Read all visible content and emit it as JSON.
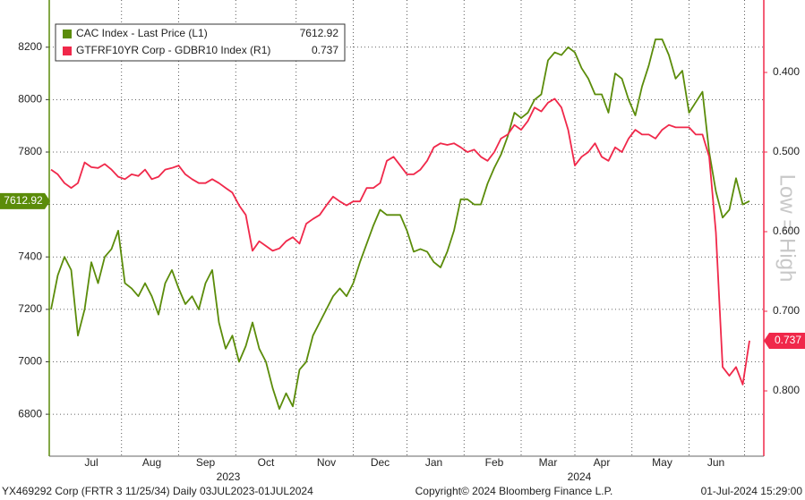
{
  "chart_data": {
    "type": "line",
    "categories": [
      null,
      null,
      null,
      null,
      null,
      null,
      "Jul",
      null,
      null,
      null,
      null,
      null,
      null,
      null,
      null,
      "Aug",
      null,
      null,
      null,
      null,
      null,
      null,
      null,
      "Sep",
      null,
      null,
      null,
      null,
      null,
      null,
      null,
      null,
      "Oct",
      null,
      null,
      null,
      null,
      null,
      null,
      null,
      null,
      "Nov",
      null,
      null,
      null,
      null,
      null,
      null,
      null,
      "Dec",
      null,
      null,
      null,
      null,
      null,
      null,
      null,
      "Jan",
      null,
      null,
      null,
      null,
      null,
      null,
      null,
      null,
      "Feb",
      null,
      null,
      null,
      null,
      null,
      null,
      null,
      "Mar",
      null,
      null,
      null,
      null,
      null,
      null,
      null,
      "Apr",
      null,
      null,
      null,
      null,
      null,
      null,
      null,
      null,
      "May",
      null,
      null,
      null,
      null,
      null,
      null,
      null,
      "Jun",
      null,
      null,
      null,
      null,
      null
    ],
    "years": [
      "2023",
      "2024"
    ],
    "series": [
      {
        "name": "CAC Index - Last Price (L1)",
        "color": "#5b8c0a",
        "values": [
          7200,
          7330,
          7400,
          7350,
          7100,
          7200,
          7380,
          7300,
          7400,
          7430,
          7500,
          7300,
          7280,
          7250,
          7300,
          7250,
          7180,
          7300,
          7350,
          7280,
          7220,
          7250,
          7200,
          7300,
          7350,
          7150,
          7050,
          7100,
          7000,
          7060,
          7150,
          7050,
          7000,
          6900,
          6820,
          6880,
          6830,
          6970,
          7000,
          7100,
          7150,
          7200,
          7250,
          7280,
          7250,
          7300,
          7380,
          7450,
          7520,
          7580,
          7560,
          7560,
          7560,
          7500,
          7420,
          7430,
          7420,
          7380,
          7360,
          7420,
          7500,
          7620,
          7620,
          7600,
          7600,
          7680,
          7740,
          7790,
          7860,
          7950,
          7930,
          7950,
          8000,
          8020,
          8150,
          8180,
          8170,
          8200,
          8180,
          8120,
          8080,
          8020,
          8020,
          7950,
          8100,
          8080,
          8000,
          7940,
          8050,
          8130,
          8230,
          8230,
          8170,
          8080,
          8110,
          7950,
          7990,
          8030,
          7800,
          7650,
          7550,
          7580,
          7700,
          7600,
          7612.92
        ]
      },
      {
        "name": "GTFRF10YR Corp - GDBR10 Index (R1)",
        "color": "#f0284a",
        "axis": "y2",
        "values": [
          0.522,
          0.528,
          0.539,
          0.545,
          0.539,
          0.513,
          0.519,
          0.52,
          0.515,
          0.522,
          0.531,
          0.534,
          0.528,
          0.53,
          0.522,
          0.534,
          0.531,
          0.522,
          0.52,
          0.517,
          0.528,
          0.534,
          0.539,
          0.539,
          0.534,
          0.539,
          0.545,
          0.551,
          0.567,
          0.579,
          0.624,
          0.612,
          0.618,
          0.624,
          0.621,
          0.612,
          0.607,
          0.615,
          0.59,
          0.584,
          0.579,
          0.567,
          0.556,
          0.562,
          0.567,
          0.562,
          0.562,
          0.545,
          0.545,
          0.539,
          0.511,
          0.506,
          0.517,
          0.528,
          0.528,
          0.522,
          0.511,
          0.494,
          0.489,
          0.491,
          0.489,
          0.494,
          0.5,
          0.497,
          0.506,
          0.511,
          0.5,
          0.483,
          0.478,
          0.466,
          0.472,
          0.461,
          0.444,
          0.449,
          0.438,
          0.433,
          0.444,
          0.472,
          0.517,
          0.506,
          0.5,
          0.489,
          0.506,
          0.511,
          0.494,
          0.5,
          0.483,
          0.472,
          0.478,
          0.478,
          0.483,
          0.472,
          0.466,
          0.469,
          0.469,
          0.469,
          0.478,
          0.478,
          0.506,
          0.601,
          0.77,
          0.781,
          0.77,
          0.792,
          0.737
        ]
      }
    ],
    "ylim": [
      6640,
      8380
    ],
    "yticks": [
      6800,
      7000,
      7200,
      7400,
      7600,
      7800,
      8000,
      8200
    ],
    "y2lim": [
      0.882,
      0.309
    ],
    "y2ticks": [
      {
        "value": 0.4,
        "label": "0.400"
      },
      {
        "value": 0.5,
        "label": "0.500"
      },
      {
        "value": 0.6,
        "label": "0.600"
      },
      {
        "value": 0.7,
        "label": "0.700"
      },
      {
        "value": 0.8,
        "label": "0.800"
      }
    ],
    "y2_label": "Low = High",
    "grid": true,
    "legend": "upper left",
    "footer": {
      "left": "YX469292 Corp (FRTR 3 11/25/34)  Daily 03JUL2023-01JUL2024",
      "center": "Copyright© 2024 Bloomberg Finance L.P.",
      "right": "01-Jul-2024 15:29:00"
    }
  }
}
